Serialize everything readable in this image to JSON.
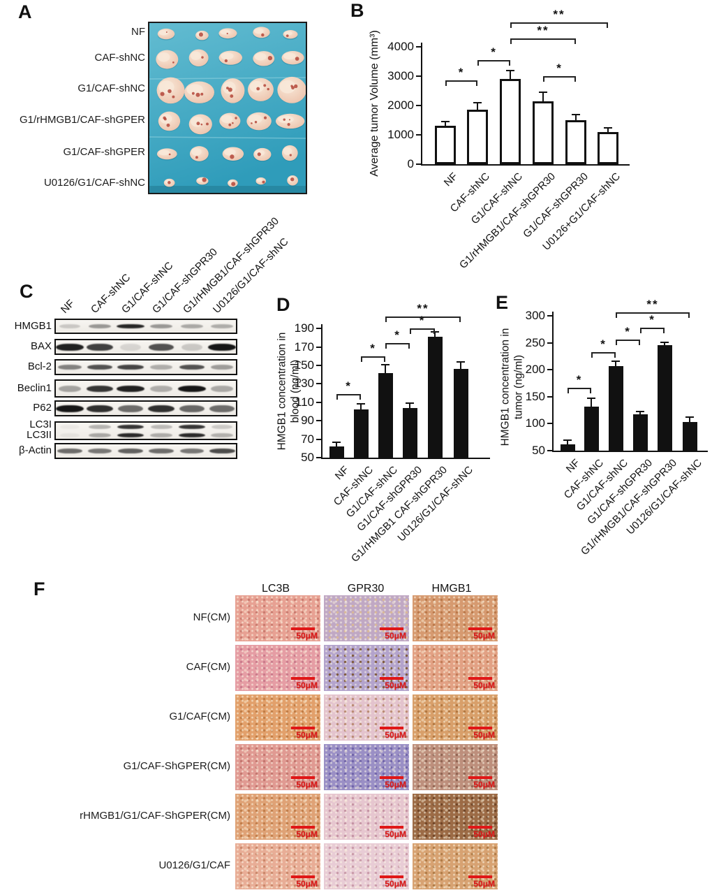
{
  "figure": {
    "panels": {
      "A": {
        "label": "A",
        "row_labels": [
          "NF",
          "CAF-shNC",
          "G1/CAF-shNC",
          "G1/rHMGB1/CAF-shGPER",
          "G1/CAF-shGPER",
          "U0126/G1/CAF-shNC"
        ],
        "tumors_per_row": 5,
        "photo_colors": {
          "bg_top": "#63bcd1",
          "bg_bottom": "#2f9cba",
          "tumor_light": "#f8e8d8",
          "tumor_dark": "#e2ae97",
          "speck": "#b4463a"
        },
        "tumor_row_sizes": [
          10,
          14,
          20,
          16,
          12,
          8
        ]
      },
      "C": {
        "label": "C",
        "lanes": [
          "NF",
          "CAF-shNC",
          "G1/CAF-shNC",
          "G1/CAF-shGPR30",
          "G1/rHMGB1/CAF-shGPR30",
          "U0126/G1/CAF-shNC"
        ],
        "row_names": [
          "HMGB1",
          "BAX",
          "Bcl-2",
          "Beclin1",
          "P62",
          "LC3I",
          "LC3II",
          "β-Actin"
        ],
        "band_intensities": {
          "HMGB1": [
            0.18,
            0.4,
            0.92,
            0.4,
            0.32,
            0.3
          ],
          "BAX": [
            0.95,
            0.8,
            0.12,
            0.72,
            0.18,
            1.0
          ],
          "Bcl-2": [
            0.5,
            0.72,
            0.78,
            0.3,
            0.72,
            0.38
          ],
          "Beclin1": [
            0.35,
            0.85,
            0.95,
            0.3,
            1.0,
            0.32
          ],
          "P62": [
            1.0,
            0.88,
            0.6,
            0.88,
            0.62,
            0.6
          ],
          "LC3I": [
            0.04,
            0.28,
            0.85,
            0.25,
            0.85,
            0.18
          ],
          "LC3II": [
            0.05,
            0.32,
            0.9,
            0.3,
            0.9,
            0.28
          ],
          "β-Actin": [
            0.6,
            0.55,
            0.65,
            0.6,
            0.55,
            0.75
          ]
        }
      },
      "F": {
        "label": "F",
        "column_headers": [
          "LC3B",
          "GPR30",
          "HMGB1"
        ],
        "row_labels": [
          "NF(CM)",
          "CAF(CM)",
          "G1/CAF(CM)",
          "G1/CAF-ShGPER(CM)",
          "rHMGB1/G1/CAF-ShGPER(CM)",
          "U0126/G1/CAF"
        ],
        "scale_bar_label": "50μM",
        "scale_bar_color": "#e01717",
        "cells": [
          [
            {
              "base": "#e7a193",
              "spot": "#c97a6e"
            },
            {
              "base": "#c0a8c4",
              "spot": "#d9b896"
            },
            {
              "base": "#d69a70",
              "spot": "#b97748"
            }
          ],
          [
            {
              "base": "#e59da4",
              "spot": "#c9798a"
            },
            {
              "base": "#b3a3cc",
              "spot": "#7e5a3a"
            },
            {
              "base": "#e2a184",
              "spot": "#c17a56"
            }
          ],
          [
            {
              "base": "#e2a06b",
              "spot": "#c07c44"
            },
            {
              "base": "#e3c3cd",
              "spot": "#b98a72"
            },
            {
              "base": "#d89f6a",
              "spot": "#b0763f"
            }
          ],
          [
            {
              "base": "#e09a92",
              "spot": "#c2746c"
            },
            {
              "base": "#9a8fc5",
              "spot": "#6f63a8"
            },
            {
              "base": "#bd8f7c",
              "spot": "#8f6452"
            }
          ],
          [
            {
              "base": "#dfa276",
              "spot": "#c07c48"
            },
            {
              "base": "#e6c6cf",
              "spot": "#c492a2"
            },
            {
              "base": "#9c6b46",
              "spot": "#6f4426"
            }
          ],
          [
            {
              "base": "#e8ad96",
              "spot": "#c98668"
            },
            {
              "base": "#e8ccd5",
              "spot": "#c99aa8"
            },
            {
              "base": "#d7a272",
              "spot": "#ae7a46"
            }
          ]
        ]
      }
    }
  },
  "chart_data": [
    {
      "panel": "B",
      "type": "bar",
      "title": "",
      "ylabel": "Average tumor Volume (mm³)",
      "xlabel": "",
      "categories": [
        "NF",
        "CAF-shNC",
        "G1/CAF-shNC",
        "G1/rHMGB1/CAF-shGPR30",
        "G1/CAF-shGPR30",
        "U0126+G1/CAF-shNC"
      ],
      "values": [
        1300,
        1850,
        2900,
        2150,
        1500,
        1100
      ],
      "errors": [
        150,
        250,
        300,
        300,
        200,
        130
      ],
      "ylim": [
        0,
        4000
      ],
      "ytick_step": 1000,
      "bar_style": "open",
      "grid": false,
      "significance": [
        {
          "from": 0,
          "to": 1,
          "label": "*",
          "y": 2850
        },
        {
          "from": 1,
          "to": 2,
          "label": "*",
          "y": 3550
        },
        {
          "from": 3,
          "to": 4,
          "label": "*",
          "y": 3000
        },
        {
          "from": 2,
          "to": 4,
          "label": "**",
          "y": 4290
        },
        {
          "from": 2,
          "to": 5,
          "label": "**",
          "y": 4840
        }
      ]
    },
    {
      "panel": "D",
      "type": "bar",
      "title": "",
      "ylabel": "HMGB1 concentration in\nblood (ng/ml)",
      "xlabel": "",
      "categories": [
        "NF",
        "CAF-shNC",
        "G1/CAF-shNC",
        "G1/CAF-shGPR30",
        "G1/rHMGB1 CAF-shGPR30",
        "U0126/G1/CAF-shNC"
      ],
      "values": [
        62,
        102,
        142,
        104,
        181,
        146
      ],
      "errors": [
        5,
        6,
        9,
        5,
        5,
        8
      ],
      "ylim": [
        50,
        190
      ],
      "ytick_step": 20,
      "bar_style": "filled",
      "grid": false,
      "significance": [
        {
          "from": 0,
          "to": 1,
          "label": "*",
          "y": 119
        },
        {
          "from": 1,
          "to": 2,
          "label": "*",
          "y": 160
        },
        {
          "from": 2,
          "to": 3,
          "label": "*",
          "y": 174
        },
        {
          "from": 3,
          "to": 4,
          "label": "*",
          "y": 190
        },
        {
          "from": 2,
          "to": 5,
          "label": "**",
          "y": 203
        }
      ]
    },
    {
      "panel": "E",
      "type": "bar",
      "title": "",
      "ylabel": "HMGB1 concentration in\ntumor (ng/ml)",
      "xlabel": "",
      "categories": [
        "NF",
        "CAF-shNC",
        "G1/CAF-shNC",
        "G1/CAF-shGPR30",
        "G1/rHMGB1/CAF-shGPR30",
        "U0126/G1/CAF-shNC"
      ],
      "values": [
        62,
        132,
        207,
        117,
        246,
        103
      ],
      "errors": [
        8,
        15,
        9,
        6,
        5,
        9
      ],
      "ylim": [
        50,
        300
      ],
      "ytick_step": 50,
      "bar_style": "filled",
      "grid": false,
      "significance": [
        {
          "from": 0,
          "to": 1,
          "label": "*",
          "y": 167
        },
        {
          "from": 1,
          "to": 2,
          "label": "*",
          "y": 233
        },
        {
          "from": 2,
          "to": 3,
          "label": "*",
          "y": 256
        },
        {
          "from": 3,
          "to": 4,
          "label": "*",
          "y": 278
        },
        {
          "from": 2,
          "to": 5,
          "label": "**",
          "y": 306
        }
      ]
    }
  ]
}
